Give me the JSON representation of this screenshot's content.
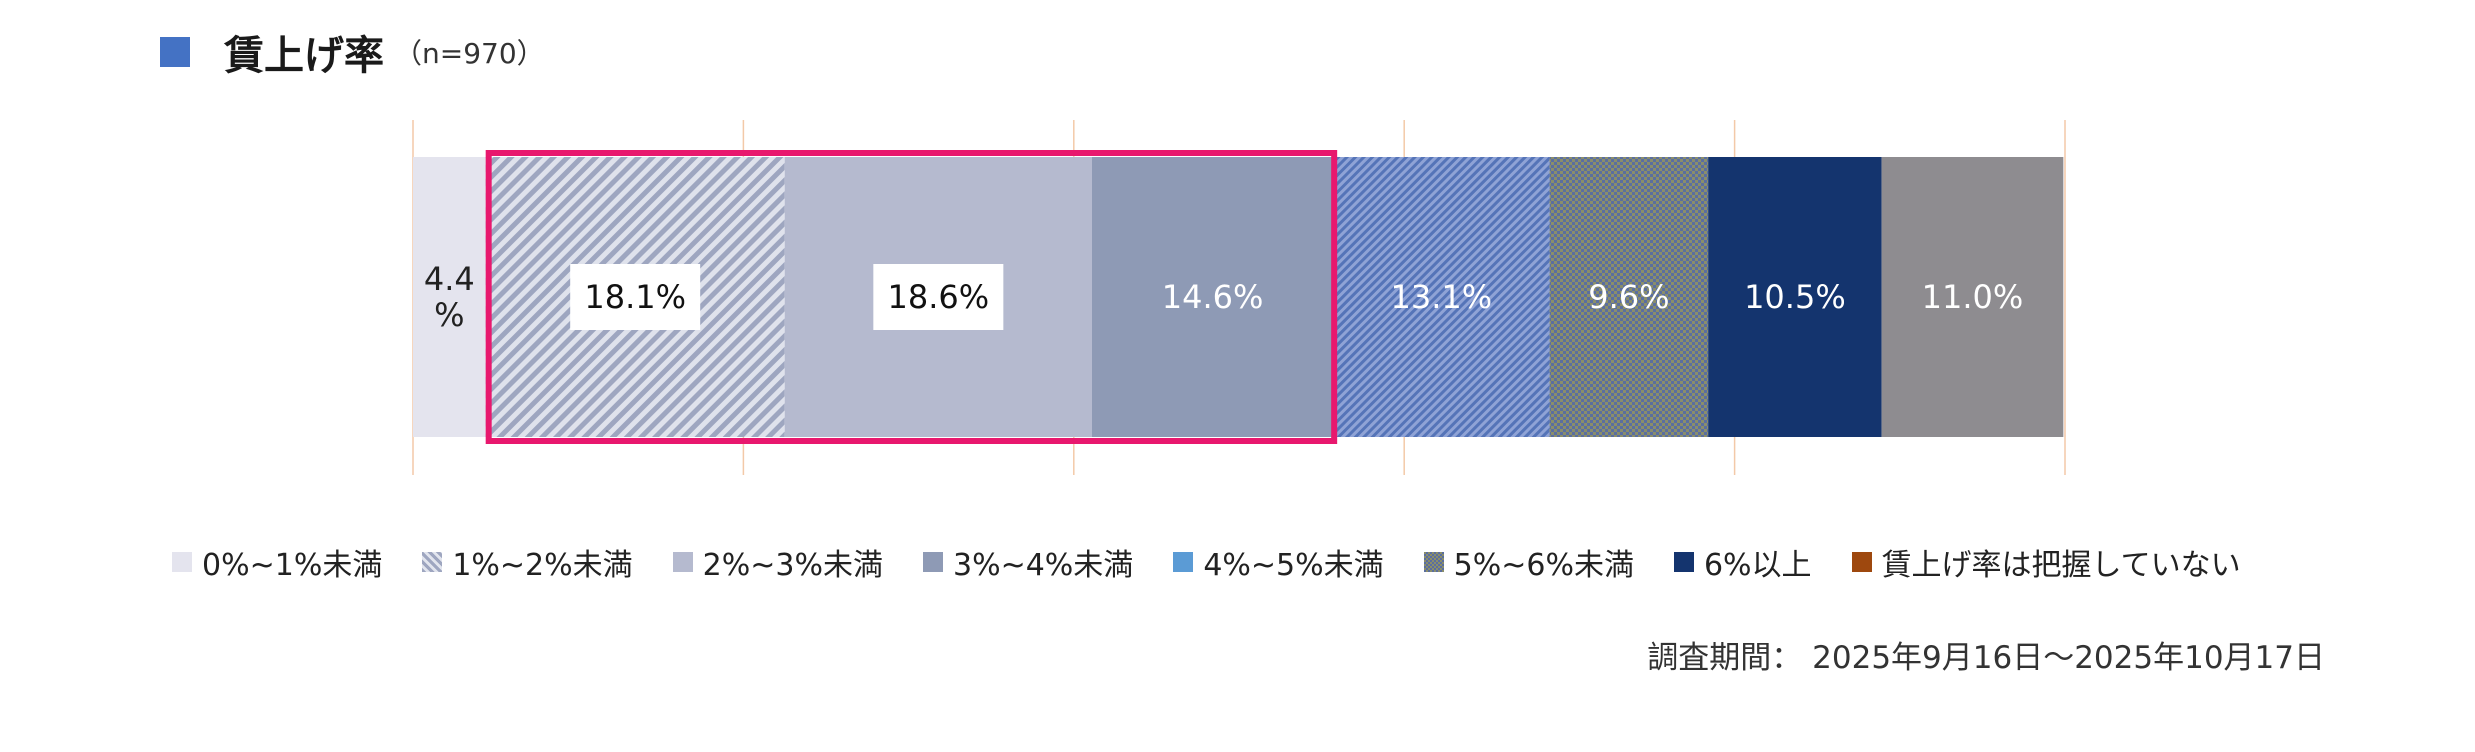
{
  "title": {
    "main": "賃上げ率",
    "n": "（n=970）",
    "marker_color": "#4472c4"
  },
  "chart_data": {
    "type": "bar",
    "orientation": "horizontal-stacked-100",
    "categories": [
      ""
    ],
    "series": [
      {
        "name": "0%~1%未満",
        "values": [
          4.4
        ],
        "label": "4.4\n%",
        "color": "#e4e4ee",
        "pattern": "solid",
        "label_color": "#222222"
      },
      {
        "name": "1%~2%未満",
        "values": [
          18.1
        ],
        "label": "18.1%",
        "color": "#b4bbd0",
        "pattern": "diagonal-stripe",
        "label_color": "#111111",
        "label_box": true
      },
      {
        "name": "2%~3%未満",
        "values": [
          18.6
        ],
        "label": "18.6%",
        "color": "#b5bacf",
        "pattern": "solid",
        "label_color": "#111111",
        "label_box": true
      },
      {
        "name": "3%~4%未満",
        "values": [
          14.6
        ],
        "label": "14.6%",
        "color": "#8e9ab5",
        "pattern": "solid",
        "label_color": "#ffffff"
      },
      {
        "name": "4%~5%未満",
        "values": [
          13.1
        ],
        "label": "13.1%",
        "color": "#6f8fcf",
        "pattern": "dense-diagonal",
        "label_color": "#ffffff"
      },
      {
        "name": "5%~6%未満",
        "values": [
          9.6
        ],
        "label": "9.6%",
        "color": "#7a7f5f",
        "pattern": "crosshatch",
        "label_color": "#ffffff"
      },
      {
        "name": "6%以上",
        "values": [
          10.5
        ],
        "label": "10.5%",
        "color": "#14346e",
        "pattern": "solid",
        "label_color": "#ffffff"
      },
      {
        "name": "賃上げ率は把握していない",
        "values": [
          11.0
        ],
        "label": "11.0%",
        "color": "#8e8c90",
        "pattern": "solid",
        "label_color": "#ffffff"
      }
    ],
    "xlim": [
      0,
      100
    ],
    "grid": true,
    "grid_color": "#f3c9a8",
    "highlight": {
      "from_series": 1,
      "to_series": 3,
      "color": "#e8186e"
    },
    "legend_position": "bottom",
    "legend_swatch_colors": [
      "#e4e4ee",
      "#b4bbd0",
      "#b5bacf",
      "#8e9ab5",
      "#5b9bd5",
      "#7a7f5f",
      "#14346e",
      "#9e480e"
    ]
  },
  "legend": [
    {
      "label": "0%~1%未満"
    },
    {
      "label": "1%~2%未満"
    },
    {
      "label": "2%~3%未満"
    },
    {
      "label": "3%~4%未満"
    },
    {
      "label": "4%~5%未満"
    },
    {
      "label": "5%~6%未満"
    },
    {
      "label": "6%以上"
    },
    {
      "label": "賃上げ率は把握していない"
    }
  ],
  "period": "調査期間： 2025年9月16日～2025年10月17日"
}
